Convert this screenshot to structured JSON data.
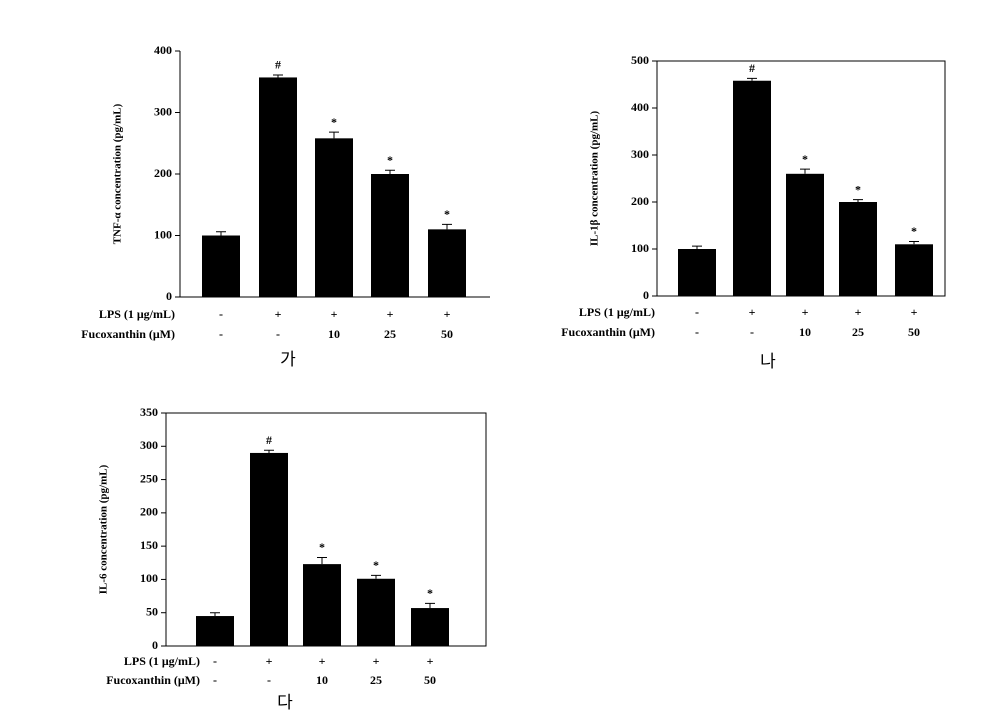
{
  "chart_data": [
    {
      "type": "bar",
      "ylabel": "TNF-α concentration (pg/mL)",
      "panel": "가",
      "values": [
        100,
        357,
        258,
        200,
        110
      ],
      "errors": [
        6,
        4,
        10,
        6,
        8
      ],
      "annotations": [
        null,
        "#",
        "*",
        "*",
        "*"
      ],
      "treatments": [
        {
          "label": "LPS (1 μg/mL)",
          "values": [
            "-",
            "+",
            "+",
            "+",
            "+"
          ]
        },
        {
          "label": "Fucoxanthin (μM)",
          "values": [
            "-",
            "-",
            "10",
            "25",
            "50"
          ]
        }
      ],
      "color": "#000000",
      "ylim": [
        0,
        400
      ],
      "yticks": [
        0,
        100,
        200,
        300,
        400
      ],
      "box": false
    },
    {
      "type": "bar",
      "ylabel": "IL-1β concentration (pg/mL)",
      "panel": "나",
      "values": [
        100,
        458,
        260,
        200,
        110
      ],
      "errors": [
        6,
        5,
        10,
        5,
        6
      ],
      "annotations": [
        null,
        "#",
        "*",
        "*",
        "*"
      ],
      "treatments": [
        {
          "label": "LPS (1 μg/mL)",
          "values": [
            "-",
            "+",
            "+",
            "+",
            "+"
          ]
        },
        {
          "label": "Fucoxanthin (μM)",
          "values": [
            "-",
            "-",
            "10",
            "25",
            "50"
          ]
        }
      ],
      "color": "#000000",
      "ylim": [
        0,
        500
      ],
      "yticks": [
        0,
        100,
        200,
        300,
        400,
        500
      ],
      "box": true
    },
    {
      "type": "bar",
      "ylabel": "IL-6 concentration (pg/mL)",
      "panel": "다",
      "values": [
        45,
        290,
        123,
        101,
        57
      ],
      "errors": [
        5,
        4,
        10,
        5,
        7
      ],
      "annotations": [
        null,
        "#",
        "*",
        "*",
        "*"
      ],
      "treatments": [
        {
          "label": "LPS (1 μg/mL)",
          "values": [
            "-",
            "+",
            "+",
            "+",
            "+"
          ]
        },
        {
          "label": "Fucoxanthin (μM)",
          "values": [
            "-",
            "-",
            "10",
            "25",
            "50"
          ]
        }
      ],
      "color": "#000000",
      "ylim": [
        0,
        350
      ],
      "yticks": [
        0,
        50,
        100,
        150,
        200,
        250,
        300,
        350
      ],
      "box": true
    }
  ]
}
